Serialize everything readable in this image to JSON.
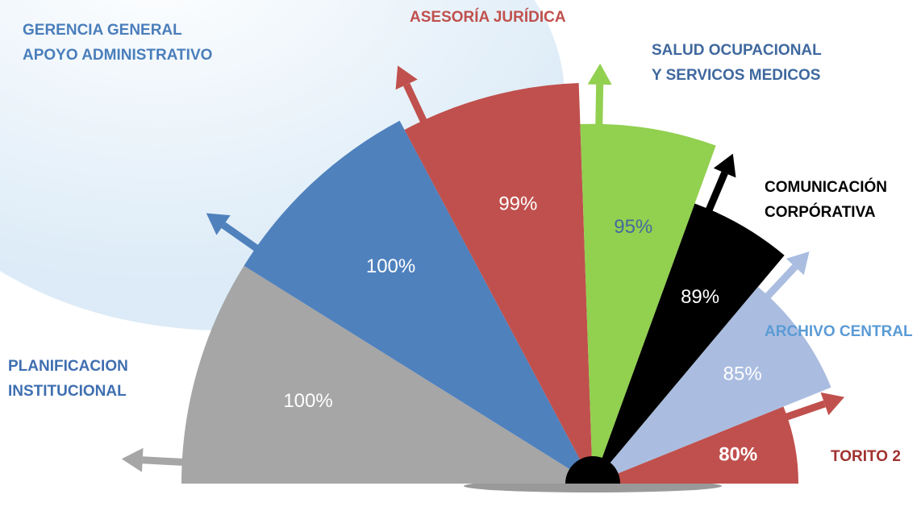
{
  "chart_data": {
    "type": "fan",
    "categories": [
      [
        "PLANIFICACION",
        "INSTITUCIONAL"
      ],
      [
        "GERENCIA GENERAL",
        "APOYO ADMINISTRATIVO"
      ],
      [
        "ASESORÍA JURÍDICA"
      ],
      [
        "SALUD OCUPACIONAL",
        "Y SERVICOS MEDICOS"
      ],
      [
        "COMUNICACIÓN",
        "CORPÓRATIVA"
      ],
      [
        "ARCHIVO CENTRAL"
      ],
      [
        "TORITO 2"
      ]
    ],
    "values": [
      100,
      100,
      99,
      95,
      89,
      85,
      80
    ],
    "value_labels": [
      "100%",
      "100%",
      "99%",
      "95%",
      "89%",
      "85%",
      "80%"
    ],
    "colors": [
      "#a6a6a6",
      "#4f81bd",
      "#c0504d",
      "#92d050",
      "#000000",
      "#aabde0",
      "#c0504d"
    ],
    "label_colors": [
      "#3f6fb0",
      "#4a7ebb",
      "#c0504d",
      "#3f689e",
      "#000000",
      "#5b9bd5",
      "#a0322f"
    ],
    "value_label_colors": [
      "#ffffff",
      "#ffffff",
      "#ffffff",
      "#44699e",
      "#ffffff",
      "#ffffff",
      "#ffffff"
    ]
  }
}
